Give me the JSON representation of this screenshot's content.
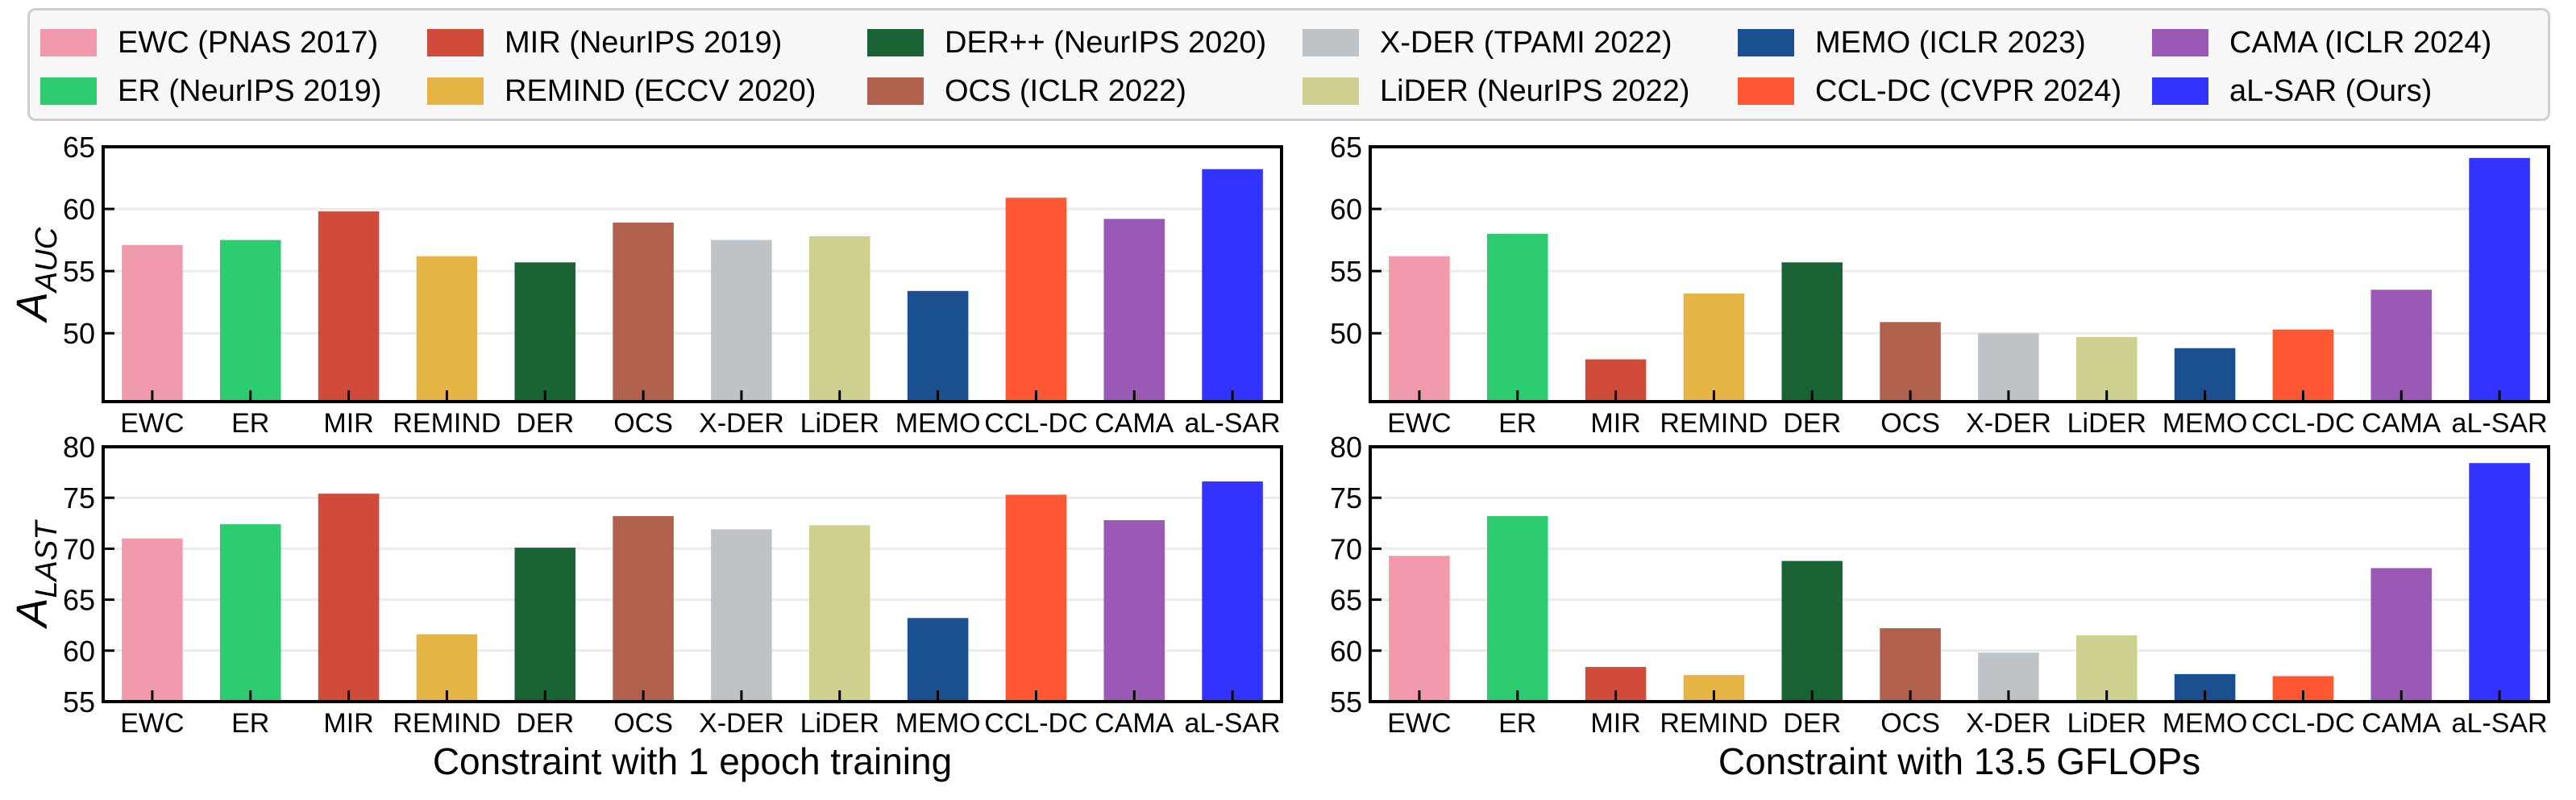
{
  "legend": [
    {
      "label": "EWC (PNAS 2017)",
      "color": "#f29aad"
    },
    {
      "label": "ER (NeurIPS 2019)",
      "color": "#2ecc71"
    },
    {
      "label": "MIR (NeurIPS 2019)",
      "color": "#d14b3b"
    },
    {
      "label": "REMIND (ECCV 2020)",
      "color": "#e5b445"
    },
    {
      "label": "DER++ (NeurIPS 2020)",
      "color": "#1a6334"
    },
    {
      "label": "OCS (ICLR 2022)",
      "color": "#b2604e"
    },
    {
      "label": "X-DER (TPAMI 2022)",
      "color": "#bdc3c7"
    },
    {
      "label": "LiDER (NeurIPS 2022)",
      "color": "#cdd08e"
    },
    {
      "label": "MEMO (ICLR 2023)",
      "color": "#1a4f90"
    },
    {
      "label": "CCL-DC (CVPR 2024)",
      "color": "#ff5733"
    },
    {
      "label": "CAMA (ICLR 2024)",
      "color": "#9b59b6"
    },
    {
      "label": "aL-SAR (Ours)",
      "color": "#3333ff"
    }
  ],
  "chart_data": [
    {
      "type": "bar",
      "ylabel_main": "A",
      "ylabel_sub": "AUC",
      "xlabel": "",
      "ylim": [
        44.5,
        65
      ],
      "yticks": [
        50,
        55,
        60,
        65
      ],
      "categories": [
        "EWC",
        "ER",
        "MIR",
        "REMIND",
        "DER",
        "OCS",
        "X-DER",
        "LiDER",
        "MEMO",
        "CCL-DC",
        "CAMA",
        "aL-SAR"
      ],
      "values": [
        57.1,
        57.5,
        59.8,
        56.2,
        55.7,
        58.9,
        57.5,
        57.8,
        53.4,
        60.9,
        59.2,
        63.2
      ]
    },
    {
      "type": "bar",
      "ylabel_main": "",
      "ylabel_sub": "",
      "xlabel": "",
      "ylim": [
        44.5,
        65
      ],
      "yticks": [
        50,
        55,
        60,
        65
      ],
      "categories": [
        "EWC",
        "ER",
        "MIR",
        "REMIND",
        "DER",
        "OCS",
        "X-DER",
        "LiDER",
        "MEMO",
        "CCL-DC",
        "CAMA",
        "aL-SAR"
      ],
      "values": [
        56.2,
        58.0,
        47.9,
        53.2,
        55.7,
        50.9,
        50.0,
        49.7,
        48.8,
        50.3,
        53.5,
        64.1
      ]
    },
    {
      "type": "bar",
      "ylabel_main": "A",
      "ylabel_sub": "LAST",
      "xlabel": "Constraint with 1 epoch training",
      "ylim": [
        55,
        80
      ],
      "yticks": [
        55,
        60,
        65,
        70,
        75,
        80
      ],
      "categories": [
        "EWC",
        "ER",
        "MIR",
        "REMIND",
        "DER",
        "OCS",
        "X-DER",
        "LiDER",
        "MEMO",
        "CCL-DC",
        "CAMA",
        "aL-SAR"
      ],
      "values": [
        71.0,
        72.4,
        75.4,
        61.6,
        70.1,
        73.2,
        71.9,
        72.3,
        63.2,
        75.3,
        72.8,
        76.6
      ]
    },
    {
      "type": "bar",
      "ylabel_main": "",
      "ylabel_sub": "",
      "xlabel": "Constraint with 13.5 GFLOPs",
      "ylim": [
        55,
        80
      ],
      "yticks": [
        55,
        60,
        65,
        70,
        75,
        80
      ],
      "categories": [
        "EWC",
        "ER",
        "MIR",
        "REMIND",
        "DER",
        "OCS",
        "X-DER",
        "LiDER",
        "MEMO",
        "CCL-DC",
        "CAMA",
        "aL-SAR"
      ],
      "values": [
        69.3,
        73.2,
        58.4,
        57.6,
        68.8,
        62.2,
        59.8,
        61.5,
        57.7,
        57.5,
        68.1,
        78.4
      ]
    }
  ]
}
